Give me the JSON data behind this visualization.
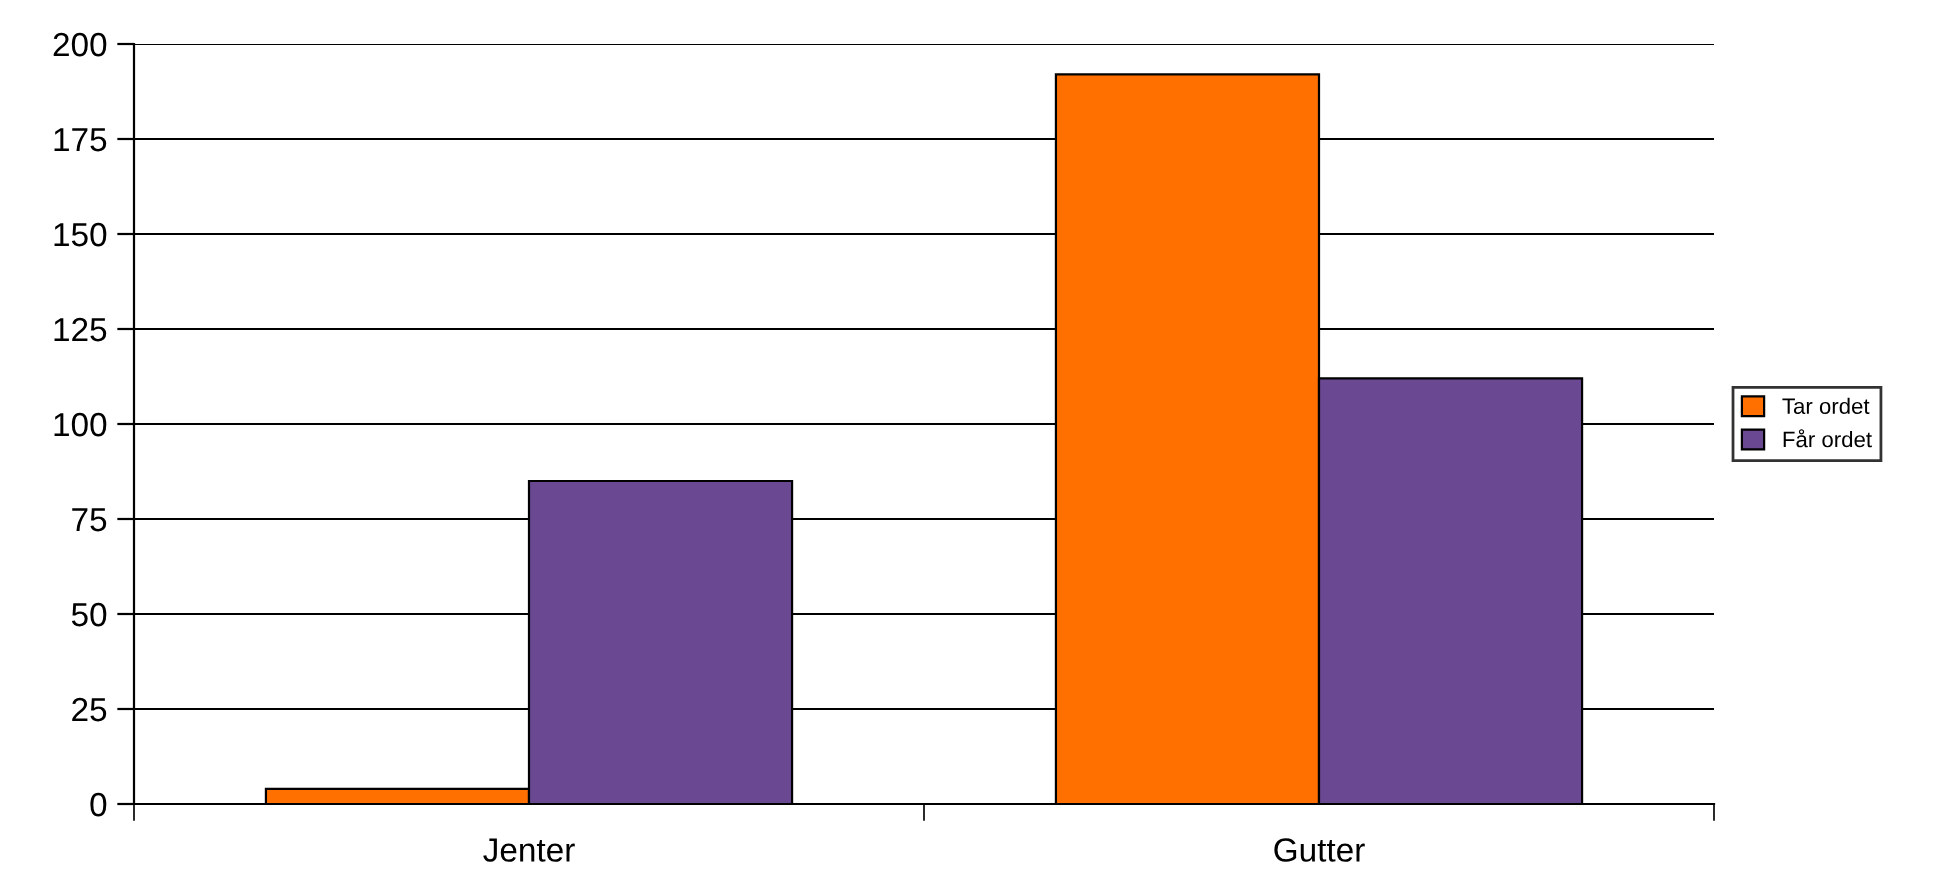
{
  "chart_data": {
    "type": "bar",
    "categories": [
      "Jenter",
      "Gutter"
    ],
    "series": [
      {
        "name": "Tar ordet",
        "color": "#ff7000",
        "values": [
          4,
          192
        ]
      },
      {
        "name": "Får ordet",
        "color": "#6b4892",
        "values": [
          85,
          112
        ]
      }
    ],
    "ylim": [
      0,
      200
    ],
    "yticks": [
      0,
      25,
      50,
      75,
      100,
      125,
      150,
      175,
      200
    ],
    "grid": "y",
    "legend": "right"
  }
}
